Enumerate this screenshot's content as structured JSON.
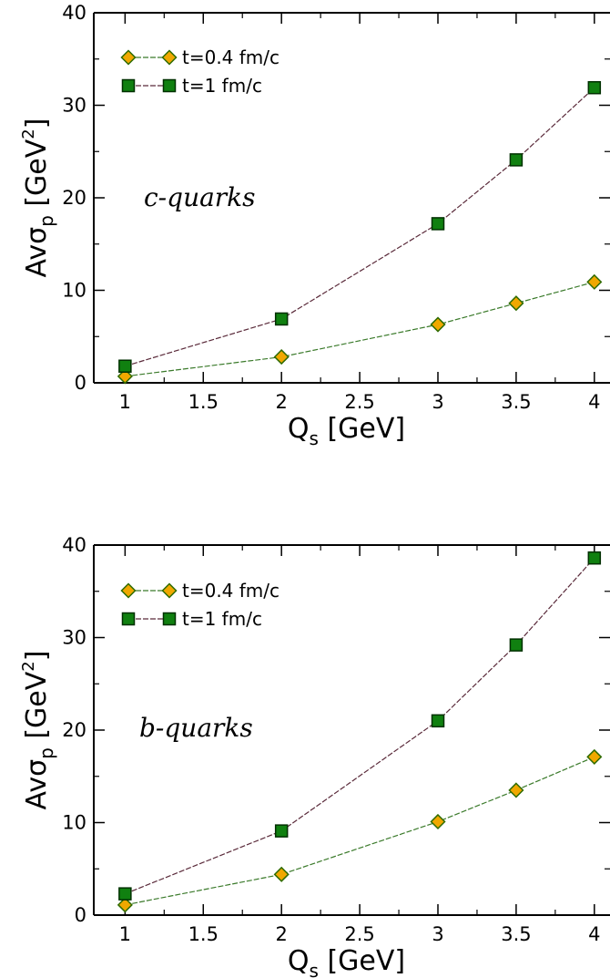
{
  "colors": {
    "diamond_fill": "#f0a800",
    "diamond_stroke": "#2e6b00",
    "square_fill": "#108010",
    "square_stroke": "#003000",
    "line_t04": "#3a7a2a",
    "line_t1": "#5a2a3a"
  },
  "chart_data": [
    {
      "type": "line",
      "x": [
        1,
        2,
        3,
        3.5,
        4
      ],
      "series": [
        {
          "name": "t=0.4 fm/c",
          "marker": "diamond",
          "values": [
            0.7,
            2.8,
            6.3,
            8.6,
            10.9
          ]
        },
        {
          "name": "t=1 fm/c",
          "marker": "square",
          "values": [
            1.8,
            6.9,
            17.2,
            24.1,
            31.9
          ]
        }
      ],
      "xlim": [
        0.8,
        4.1
      ],
      "ylim": [
        0,
        40
      ],
      "xticks": [
        1,
        1.5,
        2,
        2.5,
        3,
        3.5,
        4
      ],
      "xtick_labels": [
        "1",
        "1.5",
        "2",
        "2.5",
        "3",
        "3.5",
        "4"
      ],
      "yticks": [
        0,
        10,
        20,
        30,
        40
      ],
      "ytick_labels": [
        "0",
        "10",
        "20",
        "30",
        "40"
      ],
      "xlabel_main": "Q",
      "xlabel_sub": "s",
      "xlabel_tail": " [GeV]",
      "ylabel_main": "Avσ",
      "ylabel_sub": "p",
      "ylabel_mid": " [GeV",
      "ylabel_sup": "2",
      "ylabel_tail": "]",
      "annotation": "c-quarks",
      "legend_position": "top-left",
      "grid": false
    },
    {
      "type": "line",
      "x": [
        1,
        2,
        3,
        3.5,
        4
      ],
      "series": [
        {
          "name": "t=0.4 fm/c",
          "marker": "diamond",
          "values": [
            1.1,
            4.4,
            10.1,
            13.5,
            17.1
          ]
        },
        {
          "name": "t=1 fm/c",
          "marker": "square",
          "values": [
            2.3,
            9.1,
            21.0,
            29.2,
            38.6
          ]
        }
      ],
      "xlim": [
        0.8,
        4.1
      ],
      "ylim": [
        0,
        40
      ],
      "xticks": [
        1,
        1.5,
        2,
        2.5,
        3,
        3.5,
        4
      ],
      "xtick_labels": [
        "1",
        "1.5",
        "2",
        "2.5",
        "3",
        "3.5",
        "4"
      ],
      "yticks": [
        0,
        10,
        20,
        30,
        40
      ],
      "ytick_labels": [
        "0",
        "10",
        "20",
        "30",
        "40"
      ],
      "xlabel_main": "Q",
      "xlabel_sub": "s",
      "xlabel_tail": " [GeV]",
      "ylabel_main": "Avσ",
      "ylabel_sub": "p",
      "ylabel_mid": " [GeV",
      "ylabel_sup": "2",
      "ylabel_tail": "]",
      "annotation": "b-quarks",
      "legend_position": "top-left",
      "grid": false
    }
  ]
}
